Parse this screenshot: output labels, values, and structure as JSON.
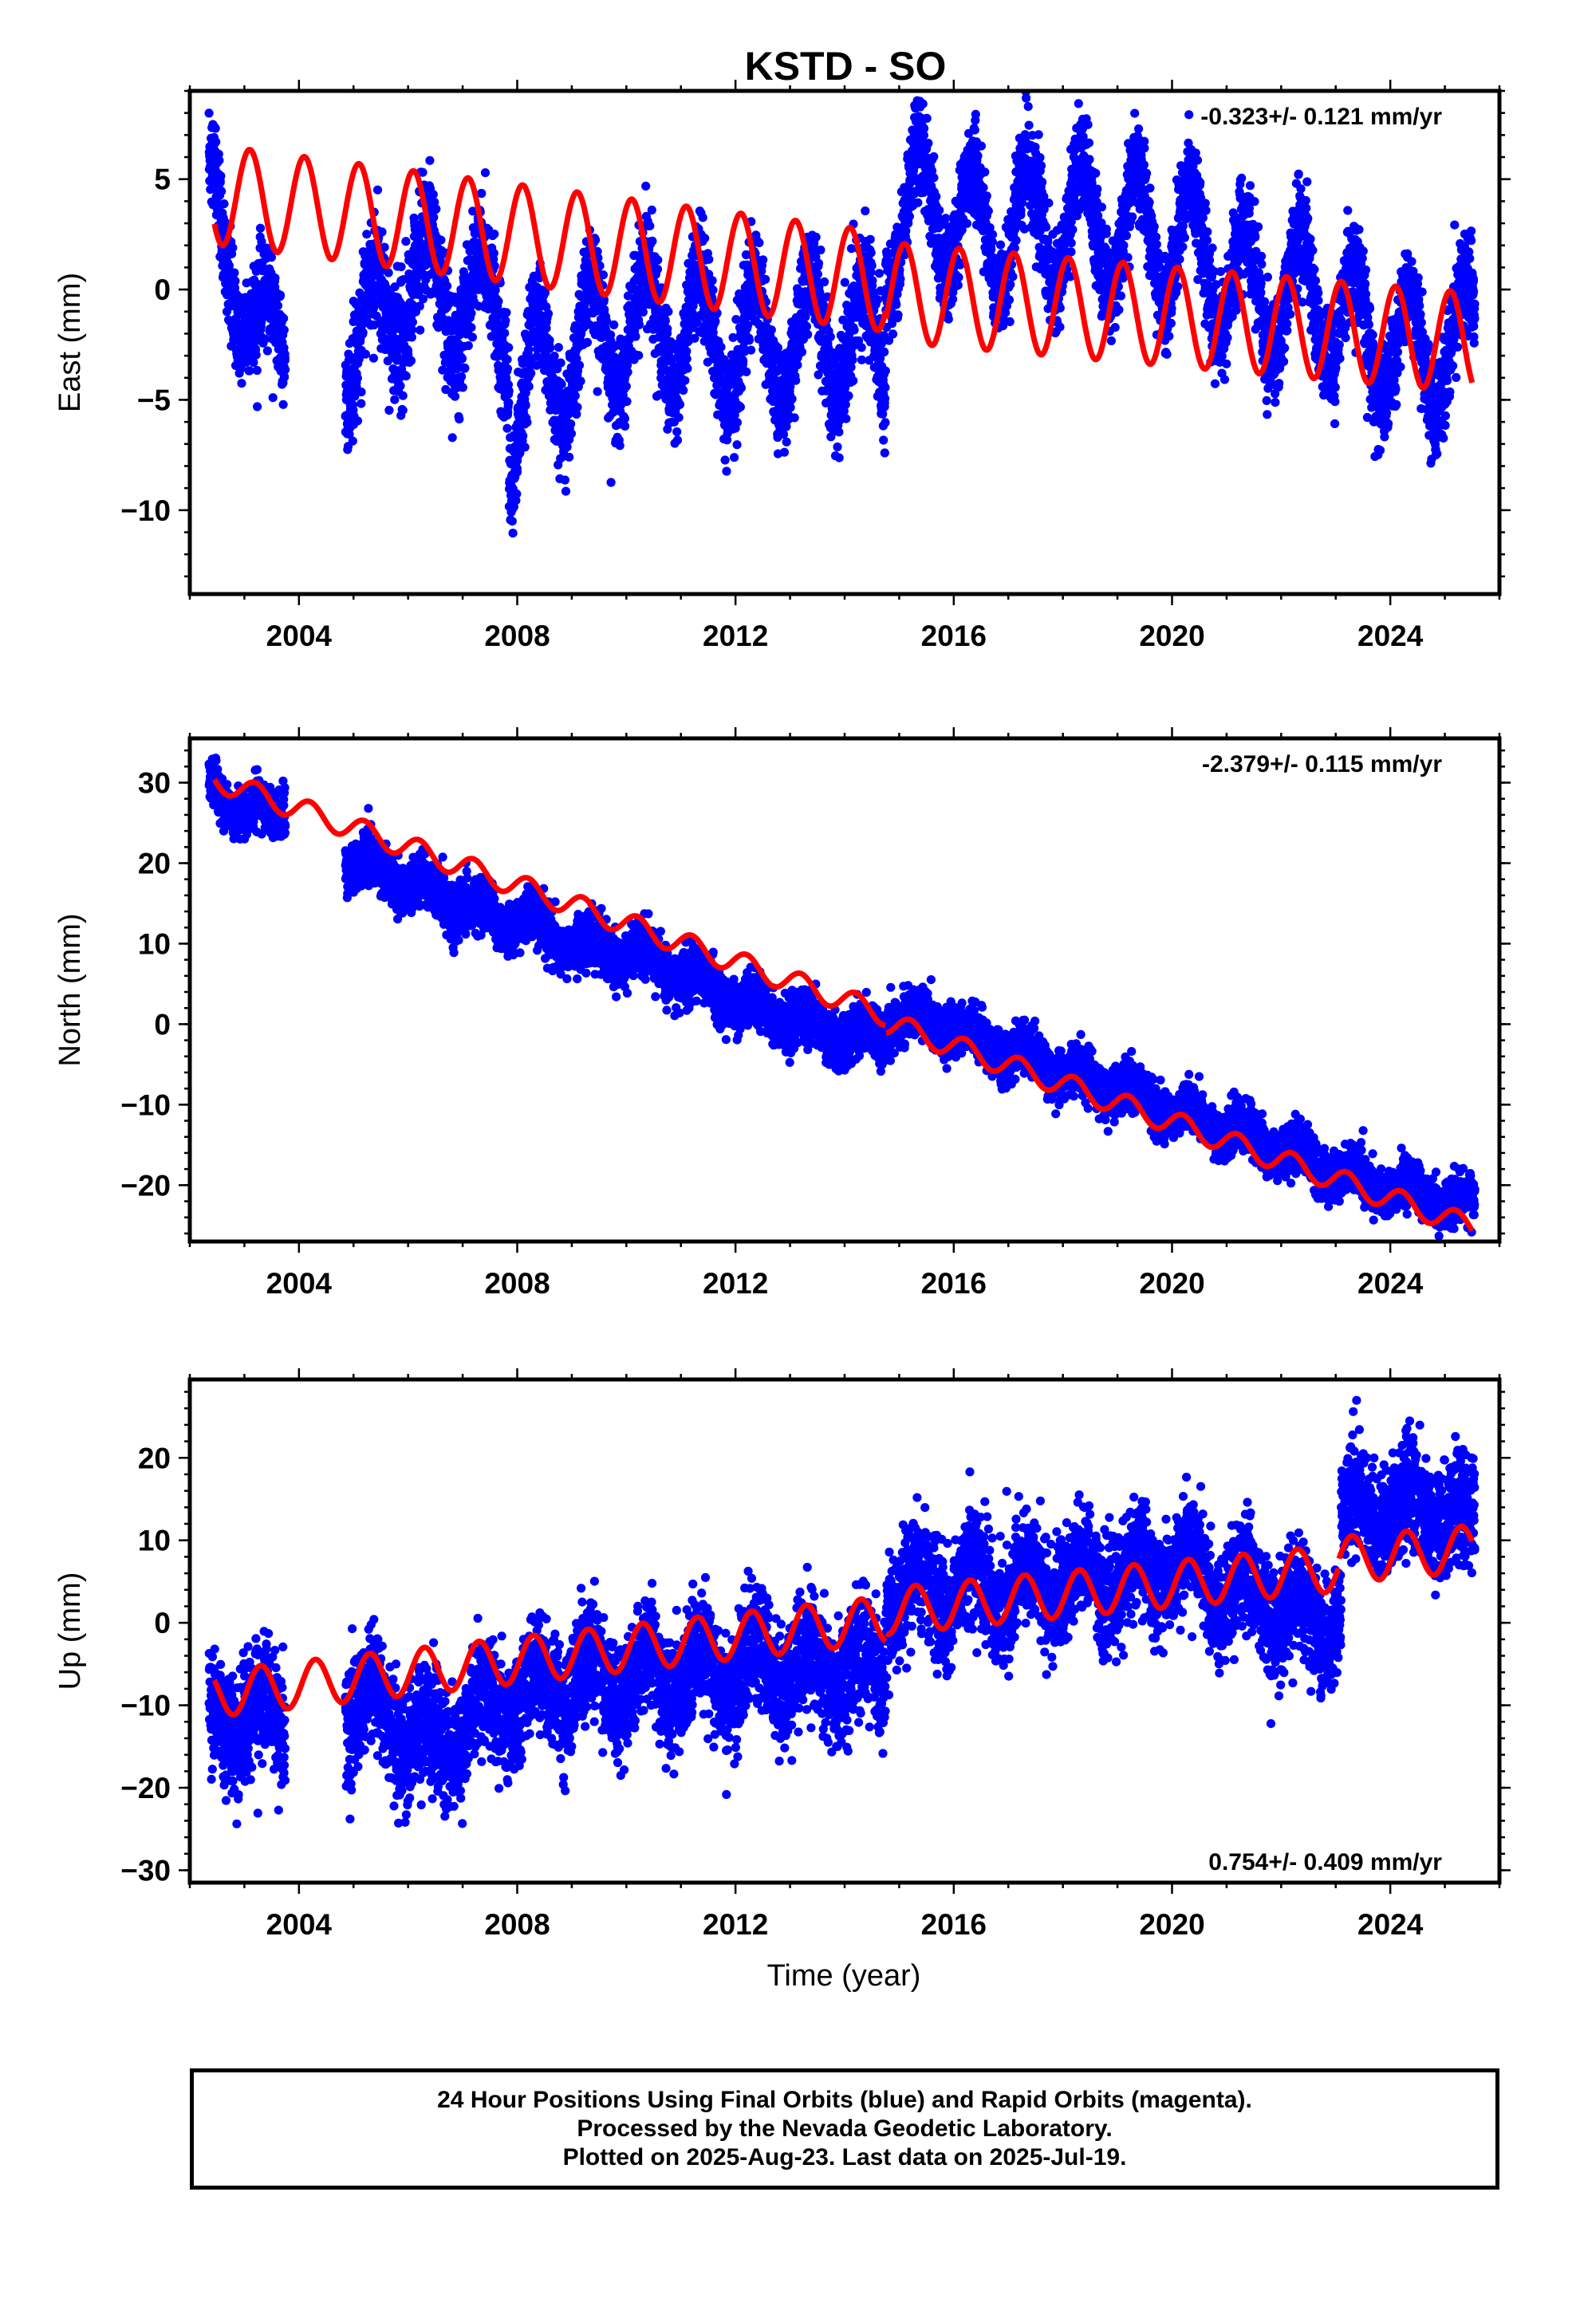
{
  "title": "KSTD - SO",
  "footer": {
    "line1": "24 Hour Positions Using Final Orbits (blue) and Rapid Orbits (magenta).",
    "line2": "Processed by the Nevada Geodetic Laboratory.",
    "line3": "Plotted on 2025-Aug-23. Last data on 2025-Jul-19."
  },
  "colors": {
    "observations": "#0000ff",
    "model": "#ff0000",
    "frame": "#000000"
  },
  "chart_data": [
    {
      "type": "scatter",
      "ylabel": "East (mm)",
      "xlabel": "",
      "rate_label": "-0.323+/- 0.121 mm/yr",
      "rate_position": "top-right",
      "xlim": [
        2002.0,
        2026.0
      ],
      "ylim": [
        -13.8,
        9.0
      ],
      "xticks": [
        2004,
        2008,
        2012,
        2016,
        2020,
        2024
      ],
      "yticks": [
        5,
        0,
        -5,
        -10
      ],
      "series": [
        {
          "kind": "observations",
          "color": "#0000ff",
          "segments": [
            {
              "x0": 2002.35,
              "x1": 2003.75,
              "anchors": [
                [
                  2002.4,
                  4.0
                ],
                [
                  2002.75,
                  1.5
                ],
                [
                  2003.0,
                  -1.0
                ],
                [
                  2003.2,
                  -2.5
                ],
                [
                  2003.75,
                  -1.5
                ]
              ],
              "amp": 2.0,
              "noise": 1.1
            },
            {
              "x0": 2004.85,
              "x1": 2007.85,
              "anchors": [
                [
                  2004.9,
                  -3.0
                ],
                [
                  2005.3,
                  -1.5
                ],
                [
                  2006.0,
                  0.2
                ],
                [
                  2007.0,
                  0.0
                ],
                [
                  2007.7,
                  -1.5
                ]
              ],
              "amp": 2.6,
              "noise": 1.3
            },
            {
              "x0": 2007.85,
              "x1": 2014.75,
              "anchors": [
                [
                  2007.9,
                  -6.5
                ],
                [
                  2008.3,
                  -4.0
                ],
                [
                  2009.0,
                  -3.0
                ],
                [
                  2010.0,
                  -1.5
                ],
                [
                  2011.0,
                  -1.8
                ],
                [
                  2012.0,
                  -2.5
                ],
                [
                  2013.0,
                  -2.5
                ],
                [
                  2014.0,
                  -2.0
                ],
                [
                  2014.7,
                  -2.5
                ]
              ],
              "amp": 2.8,
              "noise": 1.2
            },
            {
              "x0": 2014.75,
              "x1": 2025.55,
              "anchors": [
                [
                  2014.8,
                  2.5
                ],
                [
                  2015.5,
                  4.0
                ],
                [
                  2016.5,
                  2.5
                ],
                [
                  2017.5,
                  3.0
                ],
                [
                  2018.5,
                  3.0
                ],
                [
                  2019.5,
                  2.5
                ],
                [
                  2020.5,
                  2.0
                ],
                [
                  2021.5,
                  -0.5
                ],
                [
                  2022.5,
                  0.0
                ],
                [
                  2023.5,
                  -2.0
                ],
                [
                  2024.5,
                  -3.0
                ],
                [
                  2025.5,
                  -2.0
                ]
              ],
              "amp": 2.7,
              "noise": 1.1
            }
          ]
        },
        {
          "kind": "model",
          "color": "#ff0000",
          "trend": [
            [
              2002.45,
              4.3
            ],
            [
              2014.75,
              0.35
            ],
            [
              2014.76,
              -0.1
            ],
            [
              2025.5,
              -2.4
            ]
          ],
          "amp": 2.25,
          "phase": 2002.1
        }
      ]
    },
    {
      "type": "scatter",
      "ylabel": "North (mm)",
      "xlabel": "",
      "rate_label": "-2.379+/- 0.115 mm/yr",
      "rate_position": "top-right",
      "xlim": [
        2002.0,
        2026.0
      ],
      "ylim": [
        -27.0,
        35.5
      ],
      "xticks": [
        2004,
        2008,
        2012,
        2016,
        2020,
        2024
      ],
      "yticks": [
        30,
        20,
        10,
        0,
        -10,
        -20
      ],
      "series": [
        {
          "kind": "observations",
          "color": "#0000ff",
          "segments": [
            {
              "x0": 2002.35,
              "x1": 2003.75,
              "anchors": [
                [
                  2002.4,
                  28.5
                ],
                [
                  2003.0,
                  27.0
                ],
                [
                  2003.7,
                  26.0
                ]
              ],
              "amp": 1.2,
              "noise": 1.6
            },
            {
              "x0": 2004.85,
              "x1": 2007.85,
              "anchors": [
                [
                  2004.9,
                  20.5
                ],
                [
                  2006.0,
                  17.5
                ],
                [
                  2007.8,
                  12.5
                ]
              ],
              "amp": 1.3,
              "noise": 1.6
            },
            {
              "x0": 2007.85,
              "x1": 2014.75,
              "anchors": [
                [
                  2007.9,
                  13.5
                ],
                [
                  2009.0,
                  10.0
                ],
                [
                  2010.0,
                  9.0
                ],
                [
                  2011.0,
                  6.5
                ],
                [
                  2012.0,
                  3.0
                ],
                [
                  2013.0,
                  0.5
                ],
                [
                  2014.0,
                  -1.5
                ],
                [
                  2014.7,
                  -1.5
                ]
              ],
              "amp": 1.3,
              "noise": 1.6
            },
            {
              "x0": 2014.75,
              "x1": 2025.55,
              "anchors": [
                [
                  2014.8,
                  0.5
                ],
                [
                  2015.5,
                  0.5
                ],
                [
                  2016.5,
                  -2.0
                ],
                [
                  2018.0,
                  -5.5
                ],
                [
                  2020.0,
                  -10.5
                ],
                [
                  2022.0,
                  -15.5
                ],
                [
                  2023.5,
                  -19.5
                ],
                [
                  2025.5,
                  -22.5
                ]
              ],
              "amp": 1.2,
              "noise": 1.5
            }
          ]
        },
        {
          "kind": "model",
          "color": "#ff0000",
          "trend": [
            [
              2002.45,
              30.4
            ],
            [
              2014.75,
              1.2
            ],
            [
              2014.76,
              0.2
            ],
            [
              2025.5,
              -25.2
            ]
          ],
          "amp": 1.4,
          "phase": 2002.2
        }
      ]
    },
    {
      "type": "scatter",
      "ylabel": "Up (mm)",
      "xlabel": "Time (year)",
      "rate_label": "0.754+/- 0.409 mm/yr",
      "rate_position": "bottom-right",
      "xlim": [
        2002.0,
        2026.0
      ],
      "ylim": [
        -31.5,
        29.5
      ],
      "xticks": [
        2004,
        2008,
        2012,
        2016,
        2020,
        2024
      ],
      "yticks": [
        20,
        10,
        0,
        -10,
        -20,
        -30
      ],
      "series": [
        {
          "kind": "observations",
          "color": "#0000ff",
          "segments": [
            {
              "x0": 2002.35,
              "x1": 2003.75,
              "anchors": [
                [
                  2002.4,
                  -12.0
                ],
                [
                  2003.0,
                  -11.0
                ],
                [
                  2003.7,
                  -12.0
                ]
              ],
              "amp": 3.0,
              "noise": 3.6
            },
            {
              "x0": 2004.85,
              "x1": 2007.85,
              "anchors": [
                [
                  2004.9,
                  -10.0
                ],
                [
                  2005.5,
                  -10.0
                ],
                [
                  2006.3,
                  -16.0
                ],
                [
                  2007.0,
                  -12.0
                ],
                [
                  2007.8,
                  -9.0
                ]
              ],
              "amp": 3.0,
              "noise": 3.6
            },
            {
              "x0": 2007.85,
              "x1": 2014.75,
              "anchors": [
                [
                  2007.9,
                  -9.0
                ],
                [
                  2009.0,
                  -7.0
                ],
                [
                  2010.0,
                  -7.0
                ],
                [
                  2011.0,
                  -6.0
                ],
                [
                  2012.0,
                  -5.5
                ],
                [
                  2013.0,
                  -5.0
                ],
                [
                  2014.0,
                  -6.0
                ],
                [
                  2014.7,
                  -6.0
                ]
              ],
              "amp": 3.0,
              "noise": 3.5
            },
            {
              "x0": 2014.75,
              "x1": 2023.1,
              "anchors": [
                [
                  2014.8,
                  3.5
                ],
                [
                  2016.0,
                  4.5
                ],
                [
                  2018.0,
                  4.5
                ],
                [
                  2020.0,
                  7.0
                ],
                [
                  2021.3,
                  4.0
                ],
                [
                  2022.5,
                  0.0
                ],
                [
                  2023.0,
                  2.0
                ]
              ],
              "amp": 3.0,
              "noise": 3.3
            },
            {
              "x0": 2023.1,
              "x1": 2025.55,
              "anchors": [
                [
                  2023.2,
                  13.0
                ],
                [
                  2024.0,
                  14.0
                ],
                [
                  2025.0,
                  14.0
                ],
                [
                  2025.5,
                  12.0
                ]
              ],
              "amp": 2.5,
              "noise": 3.4
            }
          ]
        },
        {
          "kind": "model",
          "color": "#ff0000",
          "trend": [
            [
              2002.45,
              -8.6
            ],
            [
              2014.75,
              0.4
            ],
            [
              2014.76,
              1.4
            ],
            [
              2023.05,
              6.6
            ],
            [
              2023.06,
              7.6
            ],
            [
              2025.5,
              9.0
            ]
          ],
          "amp": 2.8,
          "phase": 2002.3
        }
      ]
    }
  ]
}
